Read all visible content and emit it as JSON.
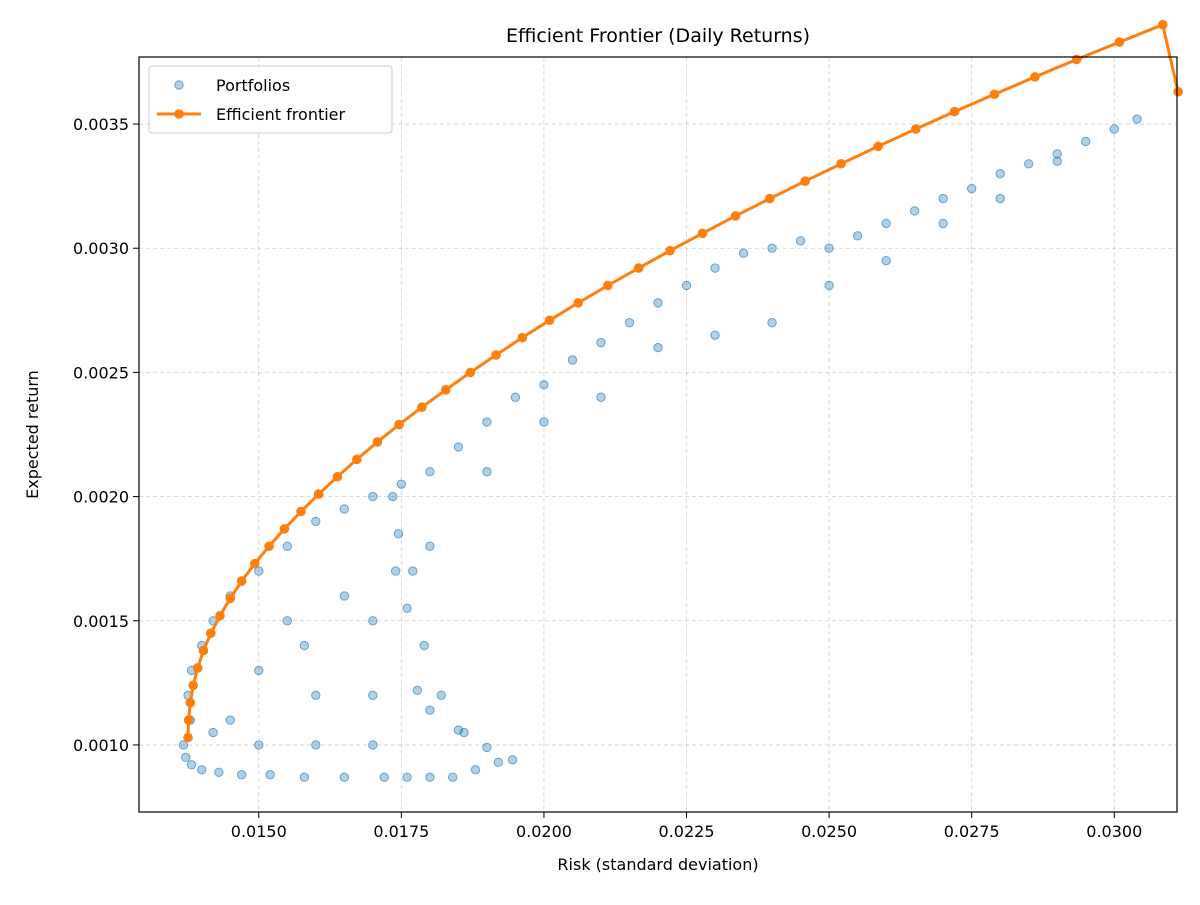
{
  "chart_data": {
    "type": "scatter",
    "title": "Efficient Frontier (Daily Returns)",
    "xlabel": "Risk (standard deviation)",
    "ylabel": "Expected return",
    "xlim": [
      0.0129,
      0.0311
    ],
    "ylim": [
      0.00073,
      0.00377
    ],
    "xticks": [
      0.015,
      0.0175,
      0.02,
      0.0225,
      0.025,
      0.0275,
      0.03
    ],
    "xtick_labels": [
      "0.0150",
      "0.0175",
      "0.0200",
      "0.0225",
      "0.0250",
      "0.0275",
      "0.0300"
    ],
    "yticks": [
      0.001,
      0.0015,
      0.002,
      0.0025,
      0.003,
      0.0035
    ],
    "ytick_labels": [
      "0.0010",
      "0.0015",
      "0.0020",
      "0.0025",
      "0.0030",
      "0.0035"
    ],
    "grid": true,
    "legend_position": "top-left",
    "colors": {
      "portfolios": "#1f77b4",
      "frontier": "#ff7f0e"
    },
    "series": [
      {
        "name": "Portfolios",
        "kind": "scatter",
        "x": [
          0.01368,
          0.01372,
          0.01382,
          0.014,
          0.0143,
          0.0147,
          0.0152,
          0.0158,
          0.0165,
          0.0172,
          0.0176,
          0.018,
          0.0184,
          0.0188,
          0.0192,
          0.01945,
          0.019,
          0.0185,
          0.018,
          0.01778,
          0.017,
          0.016,
          0.015,
          0.0142,
          0.0138,
          0.01376,
          0.01382,
          0.014,
          0.0142,
          0.0145,
          0.015,
          0.0155,
          0.016,
          0.0165,
          0.017,
          0.0175,
          0.0177,
          0.01745,
          0.01735,
          0.0174,
          0.0176,
          0.0179,
          0.0182,
          0.0186,
          0.018,
          0.0185,
          0.019,
          0.0195,
          0.02,
          0.0205,
          0.021,
          0.0215,
          0.022,
          0.0225,
          0.023,
          0.0235,
          0.024,
          0.0245,
          0.025,
          0.0255,
          0.026,
          0.0265,
          0.027,
          0.0275,
          0.028,
          0.0285,
          0.029,
          0.0295,
          0.03,
          0.0304,
          0.016,
          0.017,
          0.018,
          0.019,
          0.02,
          0.021,
          0.022,
          0.023,
          0.024,
          0.025,
          0.026,
          0.027,
          0.028,
          0.029,
          0.015,
          0.0155,
          0.0145,
          0.0165,
          0.017,
          0.0158
        ],
        "y": [
          0.001,
          0.00095,
          0.00092,
          0.0009,
          0.00089,
          0.00088,
          0.00088,
          0.00087,
          0.00087,
          0.00087,
          0.00087,
          0.00087,
          0.00087,
          0.0009,
          0.00093,
          0.00094,
          0.00099,
          0.00106,
          0.00114,
          0.00122,
          0.001,
          0.001,
          0.001,
          0.00105,
          0.0011,
          0.0012,
          0.0013,
          0.0014,
          0.0015,
          0.0016,
          0.0017,
          0.0018,
          0.0019,
          0.00195,
          0.002,
          0.00205,
          0.0017,
          0.00185,
          0.002,
          0.0017,
          0.00155,
          0.0014,
          0.0012,
          0.00105,
          0.0021,
          0.0022,
          0.0023,
          0.0024,
          0.00245,
          0.00255,
          0.00262,
          0.0027,
          0.00278,
          0.00285,
          0.00292,
          0.00298,
          0.003,
          0.00303,
          0.003,
          0.00305,
          0.0031,
          0.00315,
          0.0032,
          0.00324,
          0.0033,
          0.00334,
          0.00338,
          0.00343,
          0.00348,
          0.00352,
          0.0012,
          0.0012,
          0.0018,
          0.0021,
          0.0023,
          0.0024,
          0.0026,
          0.00265,
          0.0027,
          0.00285,
          0.00295,
          0.0031,
          0.0032,
          0.00335,
          0.0013,
          0.0015,
          0.0011,
          0.0016,
          0.0015,
          0.0014
        ]
      },
      {
        "name": "Efficient frontier",
        "kind": "line",
        "x": [
          0.01376,
          0.01377,
          0.0138,
          0.01385,
          0.01393,
          0.01403,
          0.01416,
          0.01432,
          0.0145,
          0.0147,
          0.01493,
          0.01518,
          0.01545,
          0.01574,
          0.01605,
          0.01638,
          0.01672,
          0.01708,
          0.01746,
          0.01786,
          0.01828,
          0.01871,
          0.01916,
          0.01962,
          0.0201,
          0.0206,
          0.02112,
          0.02166,
          0.02221,
          0.02278,
          0.02336,
          0.02396,
          0.02458,
          0.02521,
          0.02586,
          0.02652,
          0.0272,
          0.0279,
          0.02861,
          0.02934,
          0.03009,
          0.03085,
          0.03112
        ],
        "y": [
          0.00103,
          0.0011,
          0.00117,
          0.00124,
          0.00131,
          0.00138,
          0.00145,
          0.00152,
          0.00159,
          0.00166,
          0.00173,
          0.0018,
          0.00187,
          0.00194,
          0.00201,
          0.00208,
          0.00215,
          0.00222,
          0.00229,
          0.00236,
          0.00243,
          0.0025,
          0.00257,
          0.00264,
          0.00271,
          0.00278,
          0.00285,
          0.00292,
          0.00299,
          0.00306,
          0.00313,
          0.0032,
          0.00327,
          0.00334,
          0.00341,
          0.00348,
          0.00355,
          0.00362,
          0.00369,
          0.00376,
          0.00383,
          0.0039,
          0.00363
        ]
      }
    ]
  }
}
